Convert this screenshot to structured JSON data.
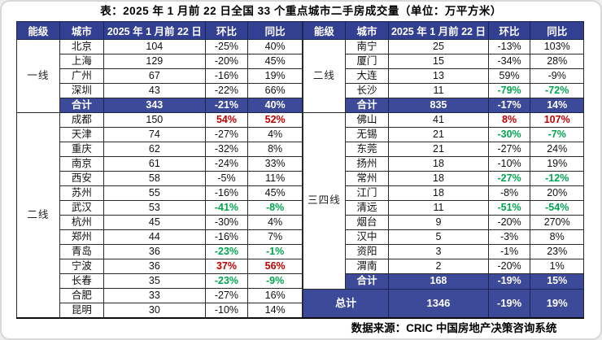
{
  "chart_data": {
    "type": "table",
    "title": "表：2025 年 1 月前 22 日全国 33 个重点城市二手房成交量（单位：万平方米）",
    "source": "数据来源：CRIC 中国房地产决策咨询系统",
    "unit": "万平方米",
    "columns": [
      "能级",
      "城市",
      "2025 年 1 月前 22 日",
      "环比",
      "同比"
    ],
    "colors": {
      "header_bg": "#333F90",
      "total_bg": "#3D4A99",
      "positive_red": "#C00000",
      "negative_green": "#00A650"
    },
    "panels": [
      {
        "name": "left",
        "tiers": [
          {
            "label": "一线",
            "rows": [
              {
                "city": "北京",
                "value": "104",
                "mom": "-25%",
                "yoy": "40%",
                "hl": "",
                "total": false
              },
              {
                "city": "上海",
                "value": "129",
                "mom": "-20%",
                "yoy": "45%",
                "hl": "",
                "total": false
              },
              {
                "city": "广州",
                "value": "67",
                "mom": "-16%",
                "yoy": "19%",
                "hl": "",
                "total": false
              },
              {
                "city": "深圳",
                "value": "43",
                "mom": "-22%",
                "yoy": "66%",
                "hl": "",
                "total": false
              },
              {
                "city": "合计",
                "value": "343",
                "mom": "-21%",
                "yoy": "40%",
                "hl": "",
                "total": true
              }
            ]
          },
          {
            "label": "二线",
            "rows": [
              {
                "city": "成都",
                "value": "150",
                "mom": "54%",
                "yoy": "52%",
                "hl": "red",
                "total": false
              },
              {
                "city": "天津",
                "value": "74",
                "mom": "-27%",
                "yoy": "4%",
                "hl": "",
                "total": false
              },
              {
                "city": "重庆",
                "value": "62",
                "mom": "-32%",
                "yoy": "8%",
                "hl": "",
                "total": false
              },
              {
                "city": "南京",
                "value": "61",
                "mom": "-24%",
                "yoy": "33%",
                "hl": "",
                "total": false
              },
              {
                "city": "西安",
                "value": "58",
                "mom": "-5%",
                "yoy": "11%",
                "hl": "",
                "total": false
              },
              {
                "city": "苏州",
                "value": "55",
                "mom": "-16%",
                "yoy": "45%",
                "hl": "",
                "total": false
              },
              {
                "city": "武汉",
                "value": "53",
                "mom": "-41%",
                "yoy": "-8%",
                "hl": "green",
                "total": false
              },
              {
                "city": "杭州",
                "value": "45",
                "mom": "-30%",
                "yoy": "4%",
                "hl": "",
                "total": false
              },
              {
                "city": "郑州",
                "value": "44",
                "mom": "-16%",
                "yoy": "7%",
                "hl": "",
                "total": false
              },
              {
                "city": "青岛",
                "value": "36",
                "mom": "-23%",
                "yoy": "-1%",
                "hl": "green",
                "total": false
              },
              {
                "city": "宁波",
                "value": "36",
                "mom": "37%",
                "yoy": "56%",
                "hl": "red",
                "total": false
              },
              {
                "city": "长春",
                "value": "35",
                "mom": "-23%",
                "yoy": "-9%",
                "hl": "green",
                "total": false
              },
              {
                "city": "合肥",
                "value": "33",
                "mom": "-27%",
                "yoy": "16%",
                "hl": "",
                "total": false
              },
              {
                "city": "昆明",
                "value": "30",
                "mom": "-10%",
                "yoy": "14%",
                "hl": "",
                "total": false
              }
            ]
          }
        ]
      },
      {
        "name": "right",
        "tiers": [
          {
            "label": "二线",
            "rows": [
              {
                "city": "南宁",
                "value": "25",
                "mom": "-13%",
                "yoy": "103%",
                "hl": "",
                "total": false
              },
              {
                "city": "厦门",
                "value": "15",
                "mom": "-34%",
                "yoy": "28%",
                "hl": "",
                "total": false
              },
              {
                "city": "大连",
                "value": "13",
                "mom": "59%",
                "yoy": "-9%",
                "hl": "",
                "total": false
              },
              {
                "city": "长沙",
                "value": "11",
                "mom": "-79%",
                "yoy": "-72%",
                "hl": "green",
                "total": false
              },
              {
                "city": "合计",
                "value": "835",
                "mom": "-17%",
                "yoy": "14%",
                "hl": "",
                "total": true
              }
            ]
          },
          {
            "label": "三四线",
            "rows": [
              {
                "city": "佛山",
                "value": "41",
                "mom": "8%",
                "yoy": "107%",
                "hl": "red",
                "total": false
              },
              {
                "city": "无锡",
                "value": "21",
                "mom": "-30%",
                "yoy": "-7%",
                "hl": "green",
                "total": false
              },
              {
                "city": "东莞",
                "value": "21",
                "mom": "-27%",
                "yoy": "24%",
                "hl": "",
                "total": false
              },
              {
                "city": "扬州",
                "value": "18",
                "mom": "-10%",
                "yoy": "19%",
                "hl": "",
                "total": false
              },
              {
                "city": "常州",
                "value": "18",
                "mom": "-27%",
                "yoy": "-12%",
                "hl": "green",
                "total": false
              },
              {
                "city": "江门",
                "value": "18",
                "mom": "-8%",
                "yoy": "20%",
                "hl": "",
                "total": false
              },
              {
                "city": "清远",
                "value": "11",
                "mom": "-51%",
                "yoy": "-54%",
                "hl": "green",
                "total": false
              },
              {
                "city": "烟台",
                "value": "9",
                "mom": "-20%",
                "yoy": "270%",
                "hl": "",
                "total": false
              },
              {
                "city": "汉中",
                "value": "5",
                "mom": "-3%",
                "yoy": "8%",
                "hl": "",
                "total": false
              },
              {
                "city": "资阳",
                "value": "3",
                "mom": "-1%",
                "yoy": "23%",
                "hl": "",
                "total": false
              },
              {
                "city": "渭南",
                "value": "2",
                "mom": "-20%",
                "yoy": "1%",
                "hl": "",
                "total": false
              },
              {
                "city": "合计",
                "value": "168",
                "mom": "-19%",
                "yoy": "15%",
                "hl": "",
                "total": true
              }
            ]
          }
        ],
        "grand_total": {
          "label": "总计",
          "value": "1346",
          "mom": "-19%",
          "yoy": "19%"
        }
      }
    ]
  }
}
